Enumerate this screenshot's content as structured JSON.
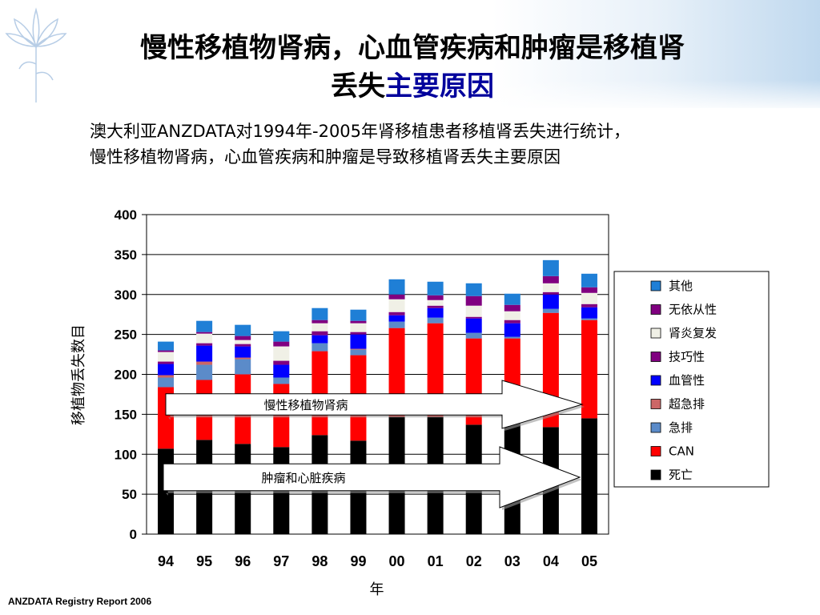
{
  "slide": {
    "title_line1": "慢性移植物肾病，心血管疾病和肿瘤是移植肾",
    "title_line2_a": "丢失",
    "title_line2_b": "主要原因",
    "desc_line1": "澳大利亚ANZDATA对1994年-2005年肾移植患者移植肾丢失进行统计，",
    "desc_line2": "慢性移植物肾病，心血管疾病和肿瘤是导致移植肾丢失主要原因",
    "source": "ANZDATA Registry Report 2006"
  },
  "chart_data": {
    "type": "bar",
    "stacked": true,
    "categories": [
      "94",
      "95",
      "96",
      "97",
      "98",
      "99",
      "00",
      "01",
      "02",
      "03",
      "04",
      "05"
    ],
    "xlabel": "年",
    "ylabel": "移植物丢失数目",
    "ylim": [
      0,
      400
    ],
    "yticks": [
      0,
      50,
      100,
      150,
      200,
      250,
      300,
      350,
      400
    ],
    "grid": true,
    "legend_position": "right",
    "series": [
      {
        "name": "死亡",
        "color": "#000000",
        "values": [
          107,
          118,
          113,
          109,
          124,
          117,
          147,
          147,
          137,
          141,
          134,
          145
        ]
      },
      {
        "name": "CAN",
        "color": "#ff0000",
        "values": [
          77,
          75,
          87,
          79,
          105,
          107,
          111,
          117,
          108,
          104,
          143,
          123
        ]
      },
      {
        "name": "急排",
        "color": "#5b8bc9",
        "values": [
          12,
          19,
          19,
          8,
          10,
          7,
          8,
          7,
          7,
          2,
          5,
          2
        ]
      },
      {
        "name": "超急排",
        "color": "#cc6666",
        "values": [
          3,
          4,
          2,
          0,
          0,
          1,
          0,
          0,
          0,
          0,
          0,
          0
        ]
      },
      {
        "name": "血管性",
        "color": "#0000ff",
        "values": [
          14,
          20,
          14,
          16,
          10,
          18,
          8,
          12,
          18,
          17,
          18,
          14
        ]
      },
      {
        "name": "技巧性",
        "color": "#800080",
        "values": [
          3,
          3,
          3,
          5,
          5,
          3,
          4,
          3,
          2,
          4,
          3,
          4
        ]
      },
      {
        "name": "肾炎复发",
        "color": "#f0f0e6",
        "values": [
          12,
          12,
          5,
          18,
          10,
          11,
          16,
          7,
          14,
          11,
          11,
          14
        ]
      },
      {
        "name": "无依从性",
        "color": "#800080",
        "values": [
          2,
          2,
          5,
          6,
          4,
          3,
          6,
          6,
          12,
          8,
          9,
          7
        ]
      },
      {
        "name": "其他",
        "color": "#1f7fd6",
        "values": [
          11,
          14,
          14,
          13,
          15,
          14,
          19,
          17,
          16,
          14,
          20,
          17
        ]
      }
    ],
    "legend_order": [
      "其他",
      "无依从性",
      "肾炎复发",
      "技巧性",
      "血管性",
      "超急排",
      "急排",
      "CAN",
      "死亡"
    ],
    "annotations": [
      {
        "text": "慢性移植物肾病"
      },
      {
        "text": "肿瘤和心脏疾病"
      }
    ]
  }
}
